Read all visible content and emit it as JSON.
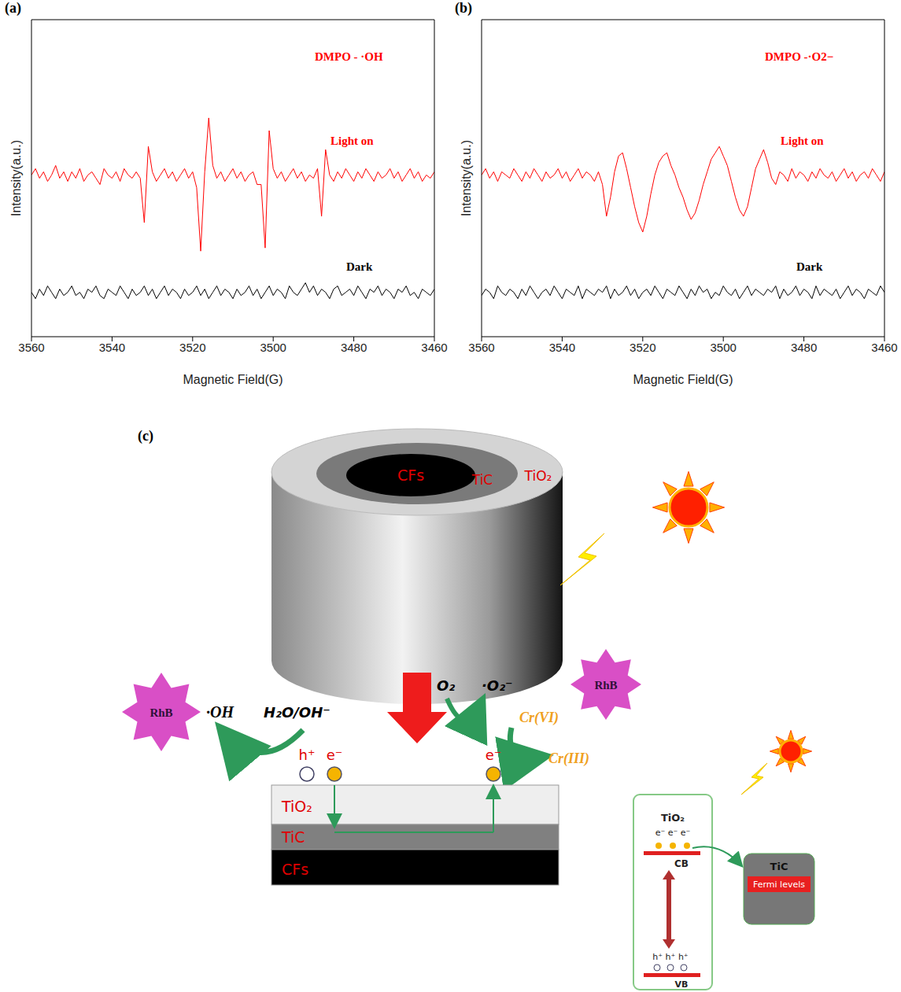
{
  "chart_data": [
    {
      "type": "line",
      "panel": "(a)",
      "title": "DMPO - ·OH",
      "xlabel": "Magnetic Field(G)",
      "ylabel": "Intensity(a.u.)",
      "x": [
        3560,
        3559,
        3558,
        3557,
        3556,
        3555,
        3554,
        3553,
        3552,
        3551,
        3550,
        3549,
        3548,
        3547,
        3546,
        3545,
        3544,
        3543,
        3542,
        3541,
        3540,
        3539,
        3538,
        3537,
        3536,
        3535,
        3534,
        3533,
        3532,
        3531,
        3530,
        3529,
        3528,
        3527,
        3526,
        3525,
        3524,
        3523,
        3522,
        3521,
        3520,
        3519,
        3518,
        3517,
        3516,
        3515,
        3514,
        3513,
        3512,
        3511,
        3510,
        3509,
        3508,
        3507,
        3506,
        3505,
        3504,
        3503,
        3502,
        3501,
        3500,
        3499,
        3498,
        3497,
        3496,
        3495,
        3494,
        3493,
        3492,
        3491,
        3490,
        3489,
        3488,
        3487,
        3486,
        3485,
        3484,
        3483,
        3482,
        3481,
        3480,
        3479,
        3478,
        3477,
        3476,
        3475,
        3474,
        3473,
        3472,
        3471,
        3470,
        3469,
        3468,
        3467,
        3466,
        3465,
        3464,
        3463,
        3462,
        3461,
        3460
      ],
      "xlim": [
        3560,
        3460
      ],
      "xticks": [
        3560,
        3540,
        3520,
        3500,
        3480,
        3460
      ],
      "ylim": [
        0,
        100
      ],
      "tick_labels": "x",
      "series": [
        {
          "name": "Light on",
          "color": "#ff0000",
          "values": [
            51,
            53,
            50,
            52,
            49,
            51,
            54,
            50,
            52,
            49,
            52,
            50,
            53,
            49,
            51,
            52,
            50,
            48,
            53,
            51,
            50,
            52,
            49,
            53,
            51,
            50,
            52,
            50,
            36,
            60,
            52,
            49,
            51,
            53,
            50,
            52,
            49,
            51,
            53,
            50,
            52,
            47,
            27,
            52,
            69,
            54,
            50,
            52,
            49,
            51,
            53,
            50,
            52,
            49,
            51,
            52,
            48,
            48,
            28,
            65,
            53,
            50,
            52,
            49,
            51,
            53,
            50,
            52,
            49,
            51,
            50,
            53,
            38,
            59,
            51,
            49,
            52,
            50,
            53,
            51,
            49,
            52,
            50,
            53,
            51,
            49,
            52,
            50,
            51,
            53,
            50,
            52,
            49,
            51,
            53,
            50,
            52,
            49,
            51,
            50,
            52
          ]
        },
        {
          "name": "Dark",
          "color": "#000000",
          "values": [
            14,
            12,
            15,
            13,
            16,
            14,
            12,
            15,
            13,
            14,
            16,
            13,
            14,
            12,
            15,
            14,
            16,
            13,
            12,
            15,
            14,
            13,
            16,
            14,
            12,
            15,
            13,
            14,
            16,
            13,
            15,
            12,
            14,
            16,
            13,
            15,
            14,
            12,
            15,
            13,
            14,
            16,
            13,
            15,
            12,
            14,
            16,
            13,
            15,
            14,
            12,
            15,
            13,
            14,
            16,
            13,
            15,
            12,
            14,
            16,
            13,
            15,
            14,
            12,
            16,
            14,
            13,
            15,
            17,
            14,
            16,
            13,
            15,
            14,
            12,
            15,
            16,
            13,
            14,
            15,
            13,
            16,
            14,
            12,
            15,
            14,
            16,
            13,
            15,
            14,
            12,
            15,
            14,
            16,
            13,
            14,
            12,
            15,
            14,
            13,
            15
          ]
        }
      ]
    },
    {
      "type": "line",
      "panel": "(b)",
      "title": "DMPO -·O2−",
      "xlabel": "Magnetic Field(G)",
      "ylabel": "Intensity(a.u.)",
      "x": [
        3560,
        3559,
        3558,
        3557,
        3556,
        3555,
        3554,
        3553,
        3552,
        3551,
        3550,
        3549,
        3548,
        3547,
        3546,
        3545,
        3544,
        3543,
        3542,
        3541,
        3540,
        3539,
        3538,
        3537,
        3536,
        3535,
        3534,
        3533,
        3532,
        3531,
        3530,
        3529,
        3528,
        3527,
        3526,
        3525,
        3524,
        3523,
        3522,
        3521,
        3520,
        3519,
        3518,
        3517,
        3516,
        3515,
        3514,
        3513,
        3512,
        3511,
        3510,
        3509,
        3508,
        3507,
        3506,
        3505,
        3504,
        3503,
        3502,
        3501,
        3500,
        3499,
        3498,
        3497,
        3496,
        3495,
        3494,
        3493,
        3492,
        3491,
        3490,
        3489,
        3488,
        3487,
        3486,
        3485,
        3484,
        3483,
        3482,
        3481,
        3480,
        3479,
        3478,
        3477,
        3476,
        3475,
        3474,
        3473,
        3472,
        3471,
        3470,
        3469,
        3468,
        3467,
        3466,
        3465,
        3464,
        3463,
        3462,
        3461,
        3460
      ],
      "xlim": [
        3560,
        3460
      ],
      "xticks": [
        3560,
        3540,
        3520,
        3500,
        3480,
        3460
      ],
      "ylim": [
        0,
        100
      ],
      "tick_labels": "x",
      "series": [
        {
          "name": "Light on",
          "color": "#ff0000",
          "values": [
            51,
            53,
            50,
            52,
            49,
            52,
            51,
            50,
            53,
            51,
            49,
            52,
            50,
            53,
            51,
            49,
            52,
            50,
            51,
            53,
            50,
            52,
            49,
            51,
            53,
            50,
            52,
            51,
            49,
            52,
            48,
            38,
            44,
            52,
            57,
            58,
            53,
            47,
            41,
            36,
            33,
            38,
            45,
            51,
            55,
            57,
            58,
            54,
            51,
            47,
            44,
            40,
            37,
            39,
            43,
            48,
            52,
            56,
            58,
            60,
            57,
            54,
            49,
            44,
            40,
            38,
            41,
            47,
            53,
            56,
            59,
            55,
            50,
            48,
            52,
            51,
            49,
            53,
            50,
            52,
            51,
            49,
            52,
            50,
            53,
            51,
            50,
            52,
            49,
            51,
            53,
            50,
            52,
            49,
            51,
            52,
            50,
            53,
            51,
            49,
            52
          ]
        },
        {
          "name": "Dark",
          "color": "#000000",
          "values": [
            13,
            15,
            14,
            12,
            16,
            14,
            13,
            15,
            14,
            12,
            15,
            13,
            16,
            14,
            12,
            14,
            15,
            13,
            16,
            14,
            12,
            15,
            14,
            13,
            16,
            12,
            15,
            14,
            13,
            15,
            14,
            16,
            12,
            15,
            13,
            14,
            16,
            13,
            15,
            12,
            14,
            15,
            13,
            16,
            14,
            12,
            15,
            14,
            13,
            16,
            14,
            12,
            15,
            13,
            16,
            14,
            15,
            12,
            14,
            13,
            16,
            14,
            13,
            15,
            12,
            14,
            16,
            13,
            15,
            14,
            13,
            15,
            14,
            16,
            12,
            15,
            13,
            14,
            16,
            13,
            15,
            14,
            12,
            16,
            13,
            15,
            14,
            13,
            15,
            12,
            14,
            16,
            13,
            15,
            14,
            12,
            15,
            14,
            13,
            16,
            14
          ]
        }
      ]
    }
  ],
  "diagram": {
    "panel": "(c)",
    "cylinder_layers": [
      "CFs",
      "TiC",
      "TiO₂"
    ],
    "layers": [
      "TiO₂",
      "TiC",
      "CFs"
    ],
    "pollutant": "RhB",
    "species": {
      "hydroxyl": "·OH",
      "water": "H₂O/OH⁻",
      "oxygen": "O₂",
      "superoxide": "·O₂⁻",
      "cr6": "Cr(VI)",
      "cr3": "Cr(III)",
      "hole": "h⁺",
      "electron": "e⁻"
    },
    "band_diagram": {
      "semiconductor": "TiO₂",
      "electrons": "e⁻ e⁻ e⁻",
      "cb": "CB",
      "vb": "VB",
      "holes": "h⁺ h⁺ h⁺",
      "metal": "TiC",
      "fermi": "Fermi levels"
    }
  }
}
